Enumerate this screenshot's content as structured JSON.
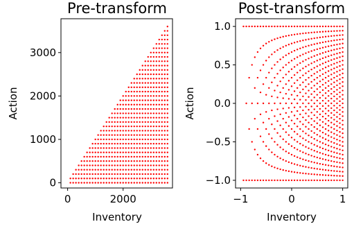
{
  "chart_data": [
    {
      "type": "scatter",
      "title": "Pre-transform",
      "xlabel": "Inventory",
      "ylabel": "Action",
      "xlim": [
        -240,
        3780
      ],
      "ylim": [
        -120,
        3780
      ],
      "xticks": [
        0,
        2000
      ],
      "yticks": [
        0,
        1000,
        2000,
        3000
      ],
      "xtick_labels": [
        "0",
        "2000"
      ],
      "ytick_labels": [
        "0",
        "1000",
        "2000",
        "3000"
      ],
      "grid": false,
      "marker_color": "#ff0000",
      "points": {
        "pattern": "triangular lattice: for each inventory x on a uniform grid from 0 to 3600, actions y on a uniform grid from 0 up to x",
        "inventory_max": 3600,
        "inventory_step": 100,
        "action_step": 100
      }
    },
    {
      "type": "scatter",
      "title": "Post-transform",
      "xlabel": "Inventory",
      "ylabel": "Action",
      "xlim": [
        -1.1,
        1.1
      ],
      "ylim": [
        -1.1,
        1.1
      ],
      "xticks": [
        -1,
        0,
        1
      ],
      "yticks": [
        -1.0,
        -0.5,
        0.0,
        0.5,
        1.0
      ],
      "xtick_labels": [
        "−1",
        "0",
        "1"
      ],
      "ytick_labels": [
        "−1.0",
        "−0.5",
        "0.0",
        "0.5",
        "1.0"
      ],
      "grid": false,
      "marker_color": "#ff0000",
      "points": {
        "pattern": "pre-transform points mapped to [-1,1]: inventory' = 2*x/3600 - 1, action' = 2*y/x - 1"
      }
    }
  ]
}
